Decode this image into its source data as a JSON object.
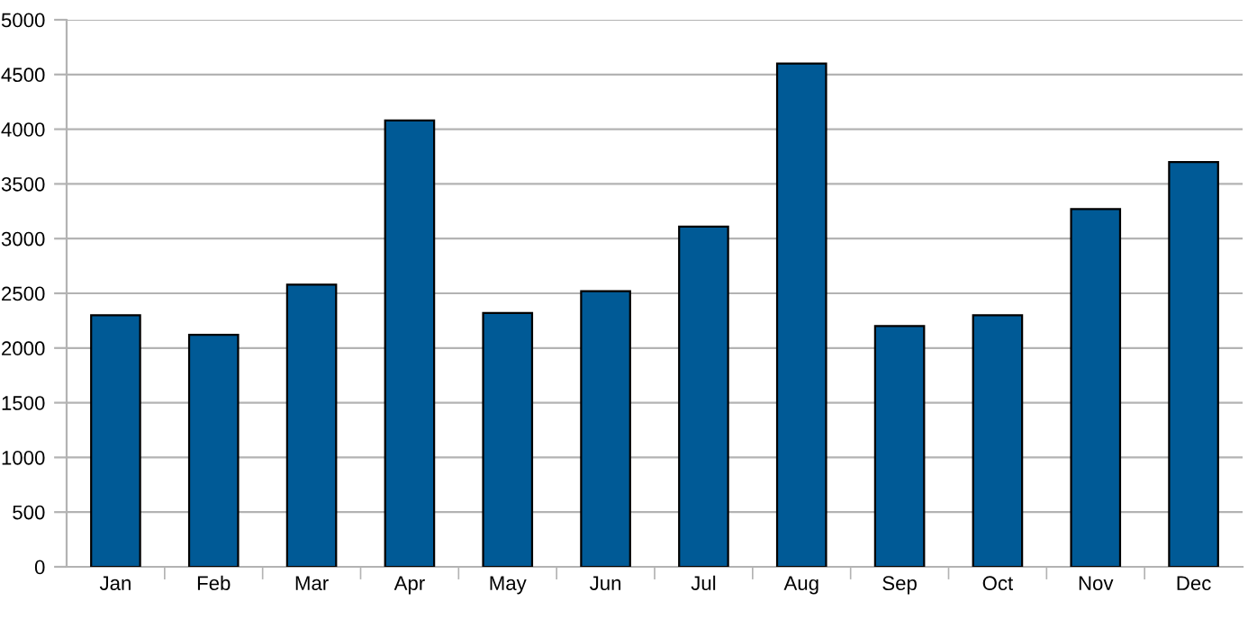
{
  "chart_data": {
    "type": "bar",
    "categories": [
      "Jan",
      "Feb",
      "Mar",
      "Apr",
      "May",
      "Jun",
      "Jul",
      "Aug",
      "Sep",
      "Oct",
      "Nov",
      "Dec"
    ],
    "values": [
      2300,
      2120,
      2580,
      4080,
      2320,
      2520,
      3110,
      4600,
      2200,
      2300,
      3270,
      3700
    ],
    "color": "#005a96",
    "ylim": [
      0,
      5000
    ],
    "yticks": [
      0,
      500,
      1000,
      1500,
      2000,
      2500,
      3000,
      3500,
      4000,
      4500,
      5000
    ],
    "grid": "y",
    "legend": false
  }
}
